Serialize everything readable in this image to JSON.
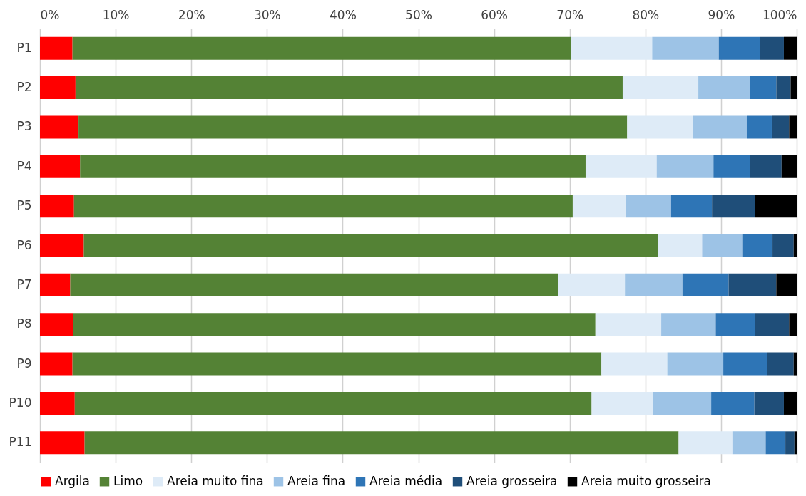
{
  "chart_data": {
    "type": "bar",
    "orientation": "horizontal",
    "stacked": true,
    "categories": [
      "P1",
      "P2",
      "P3",
      "P4",
      "P5",
      "P6",
      "P7",
      "P8",
      "P9",
      "P10",
      "P11"
    ],
    "series": [
      {
        "name": "Argila",
        "color": "#ff0000",
        "values": [
          4.3,
          4.7,
          5.1,
          5.3,
          4.5,
          5.8,
          4.0,
          4.4,
          4.3,
          4.6,
          5.9
        ]
      },
      {
        "name": "Limo",
        "color": "#548235",
        "values": [
          65.9,
          72.3,
          72.5,
          66.8,
          65.9,
          75.9,
          64.5,
          69.0,
          69.9,
          68.3,
          78.5
        ]
      },
      {
        "name": "Areia muito fina",
        "color": "#deebf7",
        "values": [
          10.7,
          10.0,
          8.7,
          9.4,
          7.0,
          5.8,
          8.8,
          8.7,
          8.7,
          8.1,
          7.1
        ]
      },
      {
        "name": "Areia fina",
        "color": "#9dc3e6",
        "values": [
          8.8,
          6.8,
          7.1,
          7.5,
          6.0,
          5.3,
          7.6,
          7.2,
          7.4,
          7.7,
          4.4
        ]
      },
      {
        "name": "Areia média",
        "color": "#2e75b6",
        "values": [
          5.4,
          3.5,
          3.3,
          4.8,
          5.4,
          4.0,
          6.1,
          5.2,
          5.8,
          5.7,
          2.6
        ]
      },
      {
        "name": "Areia grosseira",
        "color": "#1f4e79",
        "values": [
          3.2,
          1.9,
          2.3,
          4.2,
          5.7,
          2.8,
          6.3,
          4.5,
          3.5,
          3.9,
          1.2
        ]
      },
      {
        "name": "Areia muito grosseira",
        "color": "#000000",
        "values": [
          1.7,
          0.8,
          1.0,
          2.0,
          5.5,
          0.4,
          2.7,
          1.0,
          0.4,
          1.7,
          0.3
        ]
      }
    ],
    "xlim": [
      0,
      100
    ],
    "xticks": [
      {
        "value": 0,
        "label": "0%"
      },
      {
        "value": 10,
        "label": "10%"
      },
      {
        "value": 20,
        "label": "20%"
      },
      {
        "value": 30,
        "label": "30%"
      },
      {
        "value": 40,
        "label": "40%"
      },
      {
        "value": 50,
        "label": "50%"
      },
      {
        "value": 60,
        "label": "60%"
      },
      {
        "value": 70,
        "label": "70%"
      },
      {
        "value": 80,
        "label": "80%"
      },
      {
        "value": 90,
        "label": "90%"
      },
      {
        "value": 100,
        "label": "100%"
      }
    ],
    "grid": "x",
    "legend": "bottom"
  }
}
